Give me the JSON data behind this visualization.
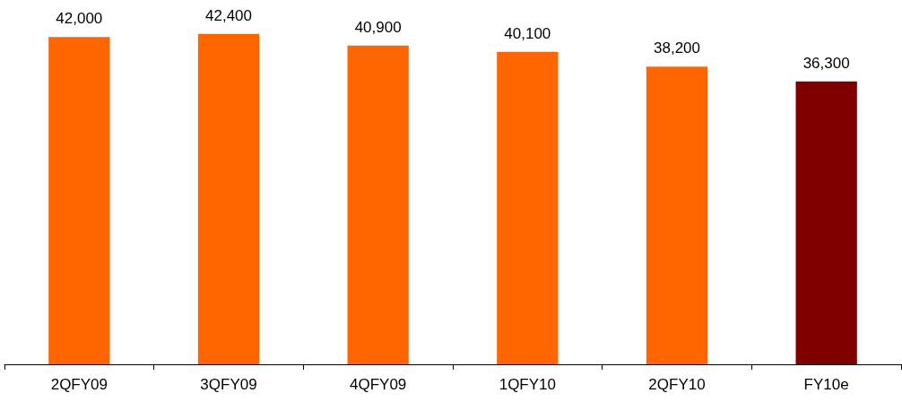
{
  "chart_data": {
    "type": "bar",
    "categories": [
      "2QFY09",
      "3QFY09",
      "4QFY09",
      "1QFY10",
      "2QFY10",
      "FY10e"
    ],
    "values": [
      42000,
      42400,
      40900,
      40100,
      38200,
      36300
    ],
    "value_labels": [
      "42,000",
      "42,400",
      "40,900",
      "40,100",
      "38,200",
      "36,300"
    ],
    "colors": [
      "#ff6600",
      "#ff6600",
      "#ff6600",
      "#ff6600",
      "#ff6600",
      "#800000"
    ]
  }
}
